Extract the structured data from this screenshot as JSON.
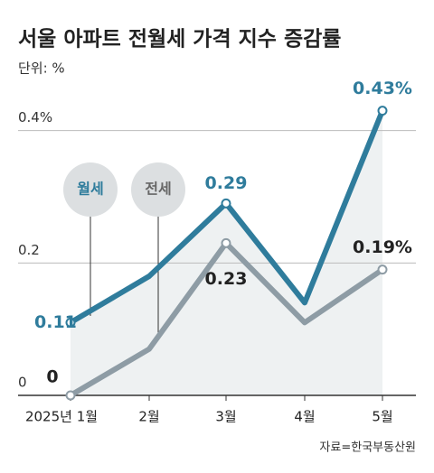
{
  "chart_data": {
    "type": "line",
    "title": "서울 아파트 전월세 가격 지수 증감률",
    "subtitle": "단위: %",
    "source": "자료=한국부동산원",
    "categories": [
      "2025년 1월",
      "2월",
      "3월",
      "4월",
      "5월"
    ],
    "series": [
      {
        "name": "월세",
        "color": "#2f7c9c",
        "values": [
          0.11,
          0.18,
          0.29,
          0.14,
          0.43
        ],
        "value_labels": [
          "0.11",
          null,
          "0.29",
          null,
          "0.43%"
        ]
      },
      {
        "name": "전세",
        "color": "#8e9ca5",
        "values": [
          0,
          0.07,
          0.23,
          0.11,
          0.19
        ],
        "value_labels": [
          "0",
          null,
          "0.23",
          null,
          "0.19%"
        ]
      }
    ],
    "ylim": [
      0,
      0.45
    ],
    "yticks": [
      0,
      0.2,
      {
        "value": 0.4,
        "label": "0.4%"
      }
    ],
    "grid": true
  }
}
